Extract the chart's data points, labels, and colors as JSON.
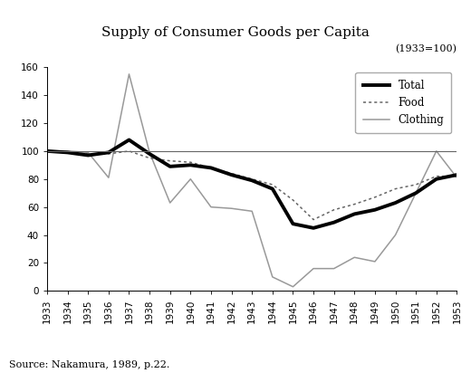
{
  "title": "Supply of Consumer Goods per Capita",
  "subtitle": "(1933=100)",
  "source": "Source: Nakamura, 1989, p.22.",
  "years": [
    1933,
    1934,
    1935,
    1936,
    1937,
    1938,
    1939,
    1940,
    1941,
    1942,
    1943,
    1944,
    1945,
    1946,
    1947,
    1948,
    1949,
    1950,
    1951,
    1952,
    1953
  ],
  "total": [
    100,
    99,
    97,
    99,
    108,
    98,
    89,
    90,
    88,
    83,
    79,
    73,
    48,
    45,
    49,
    55,
    58,
    63,
    70,
    80,
    83
  ],
  "food": [
    100,
    99,
    98,
    98,
    100,
    95,
    93,
    92,
    88,
    84,
    80,
    76,
    65,
    51,
    58,
    62,
    67,
    73,
    76,
    82,
    82
  ],
  "clothing": [
    100,
    100,
    99,
    81,
    155,
    99,
    63,
    80,
    60,
    59,
    57,
    10,
    3,
    16,
    16,
    24,
    21,
    40,
    70,
    100,
    81
  ],
  "hline_y": 100,
  "ylim": [
    0,
    160
  ],
  "yticks": [
    0,
    20,
    40,
    60,
    80,
    100,
    120,
    140,
    160
  ],
  "bg_color": "#ffffff",
  "total_color": "#000000",
  "food_color": "#666666",
  "clothing_color": "#999999",
  "total_linewidth": 2.8,
  "food_linewidth": 1.1,
  "clothing_linewidth": 1.1,
  "hline_color": "#666666",
  "hline_linewidth": 0.8,
  "title_fontsize": 11,
  "subtitle_fontsize": 8,
  "tick_fontsize": 7.5,
  "legend_fontsize": 8.5,
  "source_fontsize": 8
}
